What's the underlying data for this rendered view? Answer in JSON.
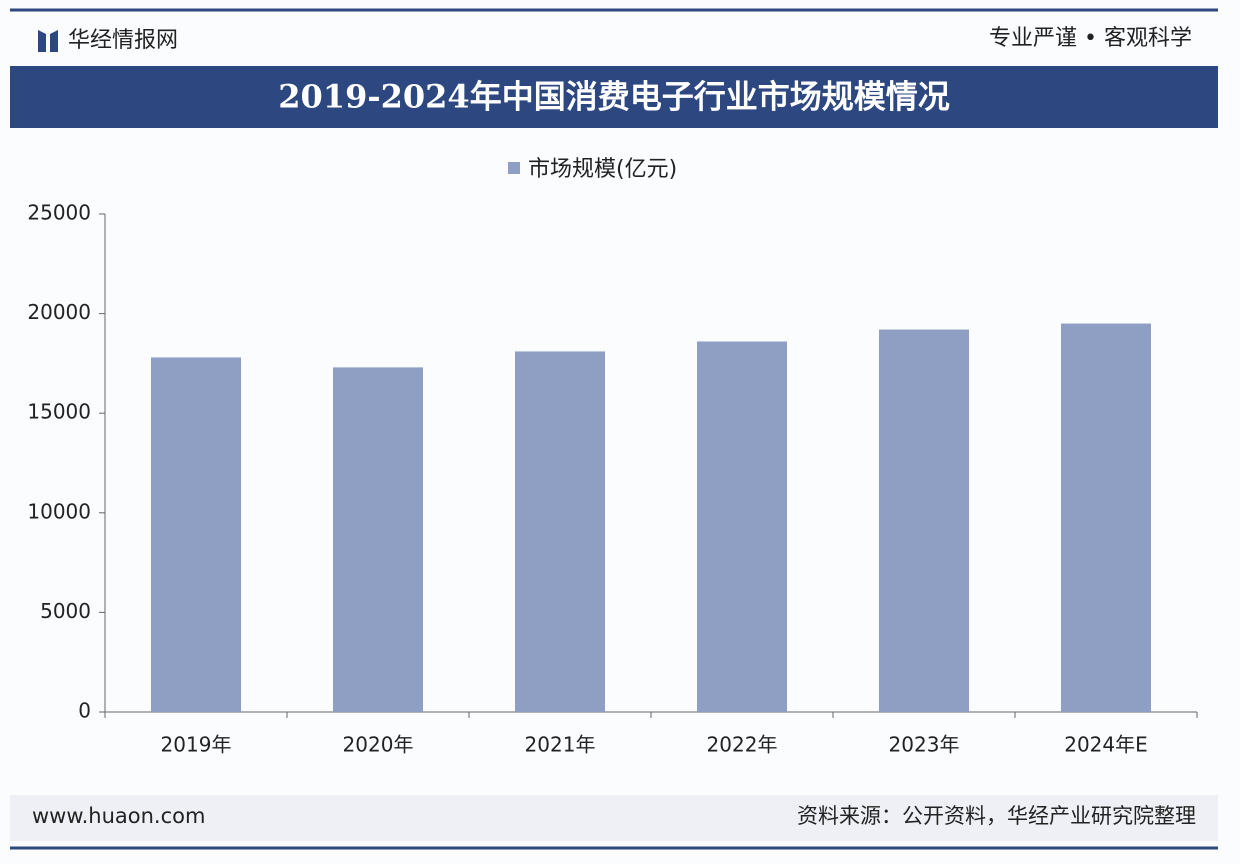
{
  "header": {
    "brand": "华经情报网",
    "slogan": "专业严谨 • 客观科学"
  },
  "chart_data": {
    "type": "bar",
    "title": "2019-2024年中国消费电子行业市场规模情况",
    "categories": [
      "2019年",
      "2020年",
      "2021年",
      "2022年",
      "2023年",
      "2024年E"
    ],
    "series": [
      {
        "name": "市场规模(亿元)",
        "color": "#8e9fc3",
        "values": [
          17800,
          17300,
          18100,
          18600,
          19200,
          19500
        ]
      }
    ],
    "ylim": [
      0,
      25000
    ],
    "yticks": [
      0,
      5000,
      10000,
      15000,
      20000,
      25000
    ],
    "grid": false,
    "legend": "top"
  },
  "footer": {
    "url": "www.huaon.com",
    "source": "资料来源：公开资料，华经产业研究院整理"
  }
}
